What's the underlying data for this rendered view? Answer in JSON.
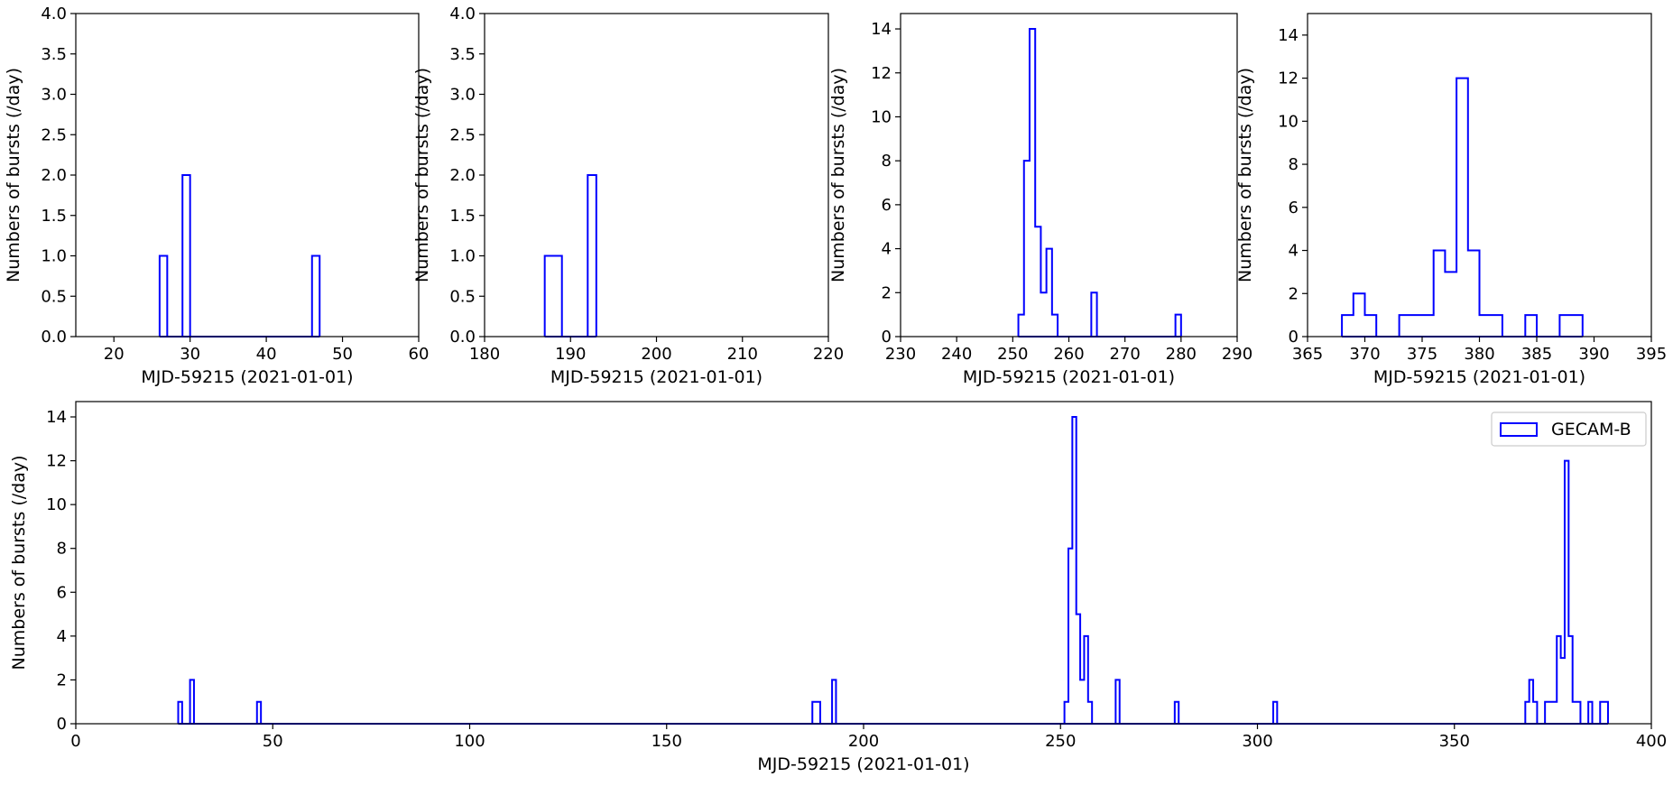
{
  "chart_data": [
    {
      "type": "histogram-step",
      "xlabel": "MJD-59215 (2021-01-01)",
      "ylabel": "Numbers of bursts (/day)",
      "xlim": [
        15,
        60
      ],
      "ylim": [
        0,
        4
      ],
      "xticks": [
        20,
        30,
        40,
        50,
        60
      ],
      "yticks": [
        0.0,
        0.5,
        1.0,
        1.5,
        2.0,
        2.5,
        3.0,
        3.5,
        4.0
      ],
      "ytick_labels": [
        "0.0",
        "0.5",
        "1.0",
        "1.5",
        "2.0",
        "2.5",
        "3.0",
        "3.5",
        "4.0"
      ],
      "bin_width": 1,
      "bins": [
        [
          26,
          1
        ],
        [
          29,
          2
        ],
        [
          46,
          1
        ]
      ]
    },
    {
      "type": "histogram-step",
      "xlabel": "MJD-59215 (2021-01-01)",
      "ylabel": "Numbers of bursts (/day)",
      "xlim": [
        180,
        220
      ],
      "ylim": [
        0,
        4
      ],
      "xticks": [
        180,
        190,
        200,
        210,
        220
      ],
      "yticks": [
        0.0,
        0.5,
        1.0,
        1.5,
        2.0,
        2.5,
        3.0,
        3.5,
        4.0
      ],
      "ytick_labels": [
        "0.0",
        "0.5",
        "1.0",
        "1.5",
        "2.0",
        "2.5",
        "3.0",
        "3.5",
        "4.0"
      ],
      "bin_width": 1,
      "bins": [
        [
          187,
          1
        ],
        [
          188,
          1
        ],
        [
          192,
          2
        ]
      ]
    },
    {
      "type": "histogram-step",
      "xlabel": "MJD-59215 (2021-01-01)",
      "ylabel": "Numbers of bursts (/day)",
      "xlim": [
        230,
        290
      ],
      "ylim": [
        0,
        14.7
      ],
      "xticks": [
        230,
        240,
        250,
        260,
        270,
        280,
        290
      ],
      "yticks": [
        0,
        2,
        4,
        6,
        8,
        10,
        12,
        14
      ],
      "ytick_labels": [
        "0",
        "2",
        "4",
        "6",
        "8",
        "10",
        "12",
        "14"
      ],
      "bin_width": 1,
      "bins": [
        [
          251,
          1
        ],
        [
          252,
          8
        ],
        [
          253,
          14
        ],
        [
          254,
          5
        ],
        [
          255,
          2
        ],
        [
          256,
          4
        ],
        [
          257,
          1
        ],
        [
          264,
          2
        ],
        [
          279,
          1
        ]
      ]
    },
    {
      "type": "histogram-step",
      "xlabel": "MJD-59215 (2021-01-01)",
      "ylabel": "Numbers of bursts (/day)",
      "xlim": [
        365,
        395
      ],
      "ylim": [
        0,
        15
      ],
      "xticks": [
        365,
        370,
        375,
        380,
        385,
        390,
        395
      ],
      "yticks": [
        0,
        2,
        4,
        6,
        8,
        10,
        12,
        14
      ],
      "ytick_labels": [
        "0",
        "2",
        "4",
        "6",
        "8",
        "10",
        "12",
        "14"
      ],
      "bin_width": 1,
      "bins": [
        [
          368,
          1
        ],
        [
          369,
          2
        ],
        [
          370,
          1
        ],
        [
          373,
          1
        ],
        [
          374,
          1
        ],
        [
          375,
          1
        ],
        [
          376,
          4
        ],
        [
          377,
          3
        ],
        [
          378,
          12
        ],
        [
          379,
          4
        ],
        [
          380,
          1
        ],
        [
          381,
          1
        ],
        [
          384,
          1
        ],
        [
          387,
          1
        ],
        [
          388,
          1
        ]
      ]
    },
    {
      "type": "histogram-step",
      "xlabel": "MJD-59215 (2021-01-01)",
      "ylabel": "Numbers of bursts (/day)",
      "xlim": [
        0,
        400
      ],
      "ylim": [
        0,
        14.7
      ],
      "xticks": [
        0,
        50,
        100,
        150,
        200,
        250,
        300,
        350,
        400
      ],
      "yticks": [
        0,
        2,
        4,
        6,
        8,
        10,
        12,
        14
      ],
      "ytick_labels": [
        "0",
        "2",
        "4",
        "6",
        "8",
        "10",
        "12",
        "14"
      ],
      "bin_width": 1,
      "legend": {
        "label": "GECAM-B",
        "placement": "upper-right"
      },
      "bins": [
        [
          26,
          1
        ],
        [
          29,
          2
        ],
        [
          46,
          1
        ],
        [
          187,
          1
        ],
        [
          188,
          1
        ],
        [
          192,
          2
        ],
        [
          251,
          1
        ],
        [
          252,
          8
        ],
        [
          253,
          14
        ],
        [
          254,
          5
        ],
        [
          255,
          2
        ],
        [
          256,
          4
        ],
        [
          257,
          1
        ],
        [
          264,
          2
        ],
        [
          279,
          1
        ],
        [
          304,
          1
        ],
        [
          368,
          1
        ],
        [
          369,
          2
        ],
        [
          370,
          1
        ],
        [
          373,
          1
        ],
        [
          374,
          1
        ],
        [
          375,
          1
        ],
        [
          376,
          4
        ],
        [
          377,
          3
        ],
        [
          378,
          12
        ],
        [
          379,
          4
        ],
        [
          380,
          1
        ],
        [
          381,
          1
        ],
        [
          384,
          1
        ],
        [
          387,
          1
        ],
        [
          388,
          1
        ]
      ]
    }
  ],
  "colors": {
    "series": "#0000ff",
    "axes": "#000000",
    "background": "#ffffff"
  }
}
